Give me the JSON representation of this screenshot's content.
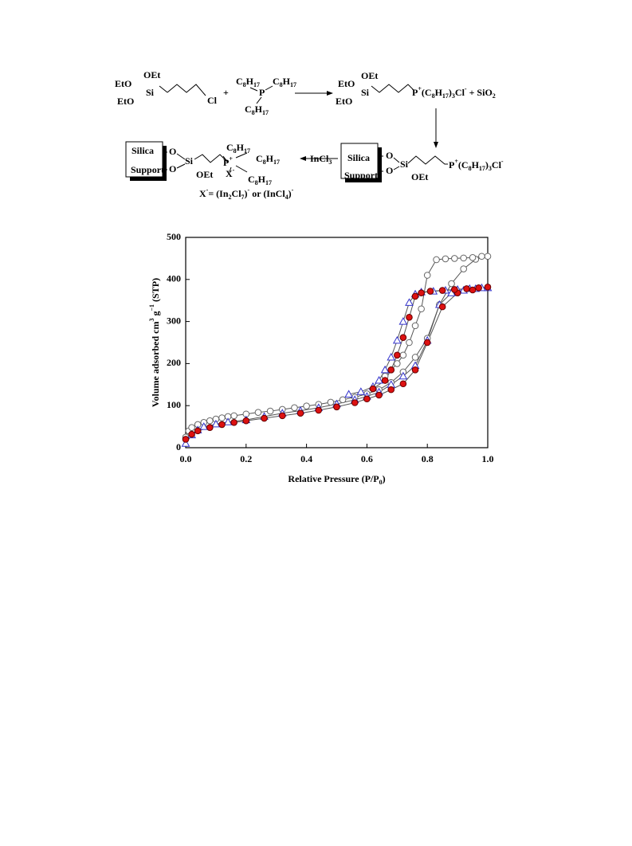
{
  "scheme": {
    "labels": [
      [
        "OEt"
      ],
      [
        "EtO"
      ],
      [
        "Si"
      ],
      [
        "EtO"
      ],
      [
        "Cl"
      ],
      [
        "+"
      ],
      [
        "C",
        {
          "sub": "8"
        },
        "H",
        {
          "sub": "17"
        }
      ],
      [
        "C",
        {
          "sub": "8"
        },
        "H",
        {
          "sub": "17"
        }
      ],
      [
        "P"
      ],
      [
        "C",
        {
          "sub": "8"
        },
        "H",
        {
          "sub": "17"
        }
      ],
      [
        "OEt"
      ],
      [
        "EtO"
      ],
      [
        "Si"
      ],
      [
        "EtO"
      ],
      [
        "P",
        {
          "sup": "+"
        },
        "(C",
        {
          "sub": "8"
        },
        "H",
        {
          "sub": "17"
        },
        ")",
        {
          "sub": "3"
        },
        "Cl",
        {
          "sup": "-"
        },
        " + SiO",
        {
          "sub": "2"
        }
      ],
      [
        "Silica"
      ],
      [
        "Support"
      ],
      [
        "O"
      ],
      [
        "O"
      ],
      [
        "Si"
      ],
      [
        "OEt"
      ],
      [
        "C",
        {
          "sub": "8"
        },
        "H",
        {
          "sub": "17"
        }
      ],
      [
        "P",
        {
          "sup": "+"
        }
      ],
      [
        "C",
        {
          "sub": "8"
        },
        "H",
        {
          "sub": "17"
        }
      ],
      [
        "X",
        {
          "sup": "-"
        }
      ],
      [
        "C",
        {
          "sub": "8"
        },
        "H",
        {
          "sub": "17"
        }
      ],
      [
        "X",
        {
          "sup": "-"
        },
        "= (In",
        {
          "sub": "2"
        },
        "Cl",
        {
          "sub": "7"
        },
        ")",
        {
          "sup": "-"
        },
        " or (InCl",
        {
          "sub": "4"
        },
        ")",
        {
          "sup": "-"
        }
      ],
      [
        "InCl",
        {
          "sub": "3"
        }
      ],
      [
        "Silica"
      ],
      [
        "Support"
      ],
      [
        "O"
      ],
      [
        "O"
      ],
      [
        "Si"
      ],
      [
        "OEt"
      ],
      [
        "P",
        {
          "sup": "+"
        },
        "(C",
        {
          "sub": "8"
        },
        "H",
        {
          "sub": "17"
        },
        ")",
        {
          "sub": "3"
        },
        "Cl",
        {
          "sup": "-"
        }
      ]
    ]
  },
  "chart_data": {
    "type": "scatter",
    "xlabel": [
      "Relative Pressure (P/P",
      {
        "sub": "0"
      },
      ")"
    ],
    "ylabel": [
      "Volume adsorbed cm",
      {
        "sup": "3"
      },
      " g",
      {
        "sup": "−1"
      },
      " (STP)"
    ],
    "xlim": [
      0,
      1
    ],
    "ylim": [
      0,
      500
    ],
    "xticks": [
      {
        "value": 0,
        "label": "0.0"
      },
      0.2,
      0.4,
      0.6,
      0.8,
      {
        "value": 1,
        "label": "1.0"
      }
    ],
    "yticks": [
      0,
      100,
      200,
      300,
      400,
      500
    ],
    "series": [
      {
        "color": "#666666",
        "fill": "#ffffff",
        "marker": "circle",
        "x": [
          0,
          0.01,
          0.02,
          0.04,
          0.06,
          0.08,
          0.1,
          0.12,
          0.14,
          0.16,
          0.2,
          0.24,
          0.28,
          0.32,
          0.36,
          0.4,
          0.44,
          0.48,
          0.52,
          0.56,
          0.6,
          0.64,
          0.68,
          0.72,
          0.76,
          0.8,
          0.84,
          0.88,
          0.92,
          0.96,
          1.0,
          0.98,
          0.95,
          0.92,
          0.89,
          0.86,
          0.83,
          0.8,
          0.78,
          0.76,
          0.74,
          0.72,
          0.7,
          0.68,
          0.66
        ],
        "values": [
          25,
          40,
          48,
          55,
          60,
          64,
          68,
          71,
          74,
          76,
          80,
          84,
          87,
          91,
          95,
          99,
          103,
          108,
          114,
          120,
          128,
          138,
          155,
          180,
          215,
          260,
          340,
          390,
          425,
          448,
          455,
          455,
          452,
          451,
          450,
          449,
          447,
          410,
          330,
          290,
          250,
          220,
          200,
          185,
          170
        ]
      },
      {
        "color": "#3333cc",
        "fill": "#ffffff",
        "marker": "triangle",
        "x": [
          0,
          0.02,
          0.04,
          0.06,
          0.1,
          0.14,
          0.2,
          0.26,
          0.32,
          0.38,
          0.44,
          0.5,
          0.56,
          0.6,
          0.64,
          0.68,
          0.72,
          0.76,
          0.8,
          0.84,
          0.88,
          0.92,
          0.96,
          1.0,
          0.98,
          0.94,
          0.9,
          0.86,
          0.82,
          0.78,
          0.76,
          0.74,
          0.72,
          0.7,
          0.68,
          0.66,
          0.64,
          0.62,
          0.58,
          0.54
        ],
        "values": [
          10,
          30,
          42,
          50,
          56,
          61,
          66,
          74,
          82,
          88,
          95,
          104,
          114,
          122,
          132,
          150,
          170,
          195,
          255,
          340,
          368,
          374,
          378,
          380,
          380,
          378,
          376,
          374,
          372,
          370,
          365,
          345,
          300,
          255,
          215,
          185,
          160,
          145,
          133,
          127
        ]
      },
      {
        "color": "#660000",
        "fill": "#dd1111",
        "marker": "circle",
        "x": [
          0,
          0.02,
          0.04,
          0.08,
          0.12,
          0.16,
          0.2,
          0.26,
          0.32,
          0.38,
          0.44,
          0.5,
          0.56,
          0.6,
          0.64,
          0.68,
          0.72,
          0.76,
          0.8,
          0.85,
          0.9,
          0.95,
          1.0,
          0.97,
          0.93,
          0.89,
          0.85,
          0.81,
          0.78,
          0.76,
          0.74,
          0.72,
          0.7,
          0.68,
          0.66,
          0.62
        ],
        "values": [
          20,
          32,
          40,
          48,
          55,
          60,
          64,
          70,
          76,
          82,
          89,
          97,
          107,
          116,
          125,
          138,
          152,
          185,
          250,
          335,
          368,
          375,
          382,
          380,
          378,
          376,
          374,
          372,
          368,
          360,
          310,
          262,
          220,
          185,
          160,
          140
        ]
      }
    ]
  }
}
